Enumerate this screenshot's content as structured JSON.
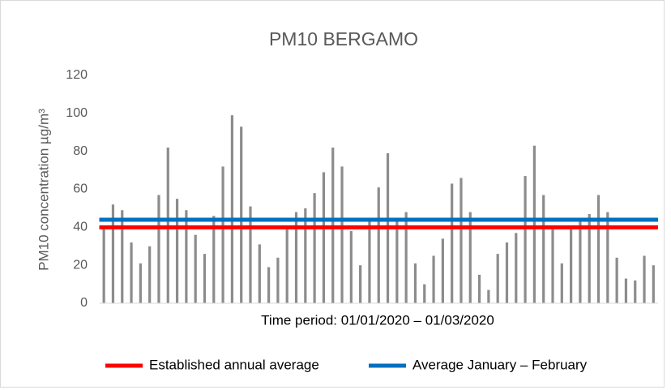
{
  "chart_data": {
    "type": "bar",
    "title": "PM10 BERGAMO",
    "y_label": "PM10 concentration µg/m³",
    "x_label": "Time period: 01/01/2020 – 01/03/2020",
    "values": [
      40,
      52,
      49,
      32,
      21,
      30,
      57,
      82,
      55,
      49,
      36,
      26,
      46,
      72,
      99,
      93,
      51,
      31,
      19,
      24,
      40,
      48,
      50,
      58,
      69,
      82,
      72,
      38,
      20,
      44,
      61,
      79,
      45,
      48,
      21,
      10,
      25,
      34,
      63,
      66,
      48,
      15,
      7,
      26,
      32,
      37,
      67,
      83,
      57,
      40,
      21,
      40,
      44,
      47,
      57,
      48,
      24,
      13,
      12,
      25,
      20
    ],
    "color": "#8c8c8c",
    "reference_lines": [
      {
        "name": "Established annual average",
        "value": 40,
        "color": "#ff0000"
      },
      {
        "name": "Average January – February",
        "value": 44,
        "color": "#0070c0"
      }
    ],
    "ylim": [
      0,
      120
    ],
    "yticks": [
      0,
      20,
      40,
      60,
      80,
      100,
      120
    ],
    "grid": false,
    "legend": "bottom"
  }
}
